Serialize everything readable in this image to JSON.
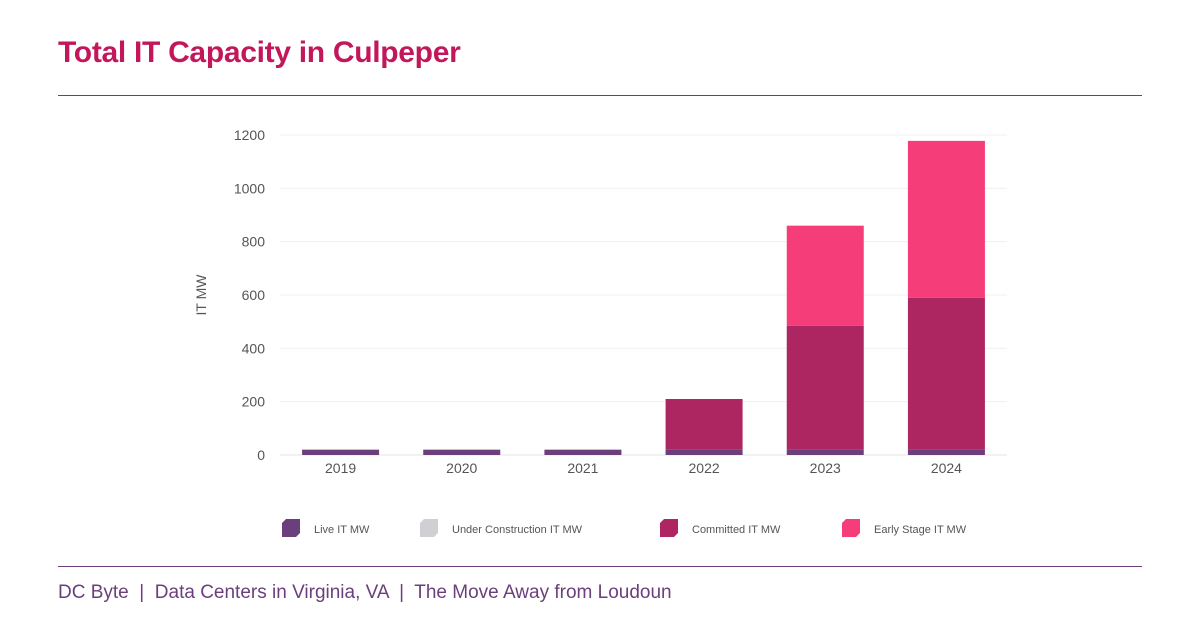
{
  "header": {
    "title": "Total IT Capacity in Culpeper"
  },
  "footer": {
    "text": "DC Byte  |  Data Centers in Virginia, VA  |  The Move Away from Loudoun"
  },
  "chart_data": {
    "type": "bar",
    "stacked": true,
    "title": "Total IT Capacity in Culpeper",
    "xlabel": "",
    "ylabel": "IT MW",
    "ylim": [
      0,
      1200
    ],
    "yticks": [
      0,
      200,
      400,
      600,
      800,
      1000,
      1200
    ],
    "grid": true,
    "legend_position": "bottom",
    "categories": [
      "2019",
      "2020",
      "2021",
      "2022",
      "2023",
      "2024"
    ],
    "series": [
      {
        "name": "Live IT MW",
        "color": "#6b3f7c",
        "values": [
          20,
          20,
          20,
          20,
          20,
          20
        ]
      },
      {
        "name": "Under Construction IT MW",
        "color": "#cfcfd4",
        "values": [
          0,
          0,
          0,
          0,
          0,
          0
        ]
      },
      {
        "name": "Committed IT MW",
        "color": "#ad2662",
        "values": [
          0,
          0,
          0,
          190,
          464,
          569
        ]
      },
      {
        "name": "Early Stage IT MW",
        "color": "#f53d7a",
        "values": [
          0,
          0,
          0,
          0,
          376,
          589
        ]
      }
    ]
  }
}
